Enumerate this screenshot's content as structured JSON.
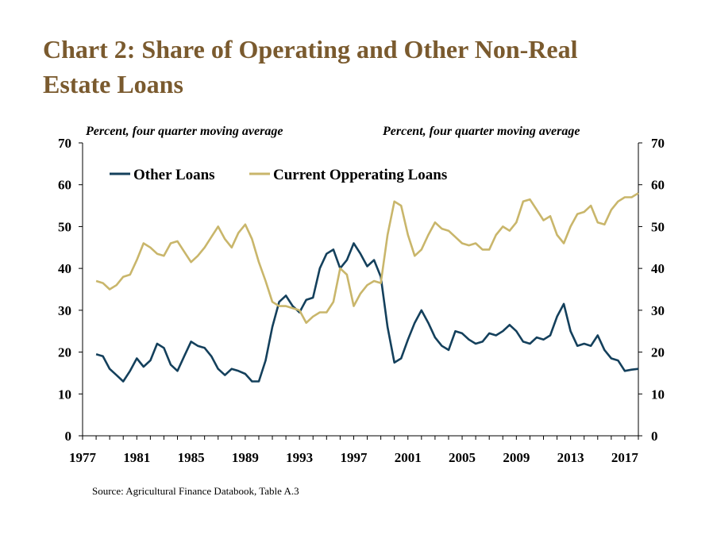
{
  "title_line1": "Chart 2: Share of Operating and Other Non-Real",
  "title_line2": "Estate Loans",
  "left_unit": "Percent, four quarter moving average",
  "right_unit": "Percent, four quarter moving average",
  "source": "Source: Agricultural Finance Databook, Table A.3",
  "colors": {
    "other": "#14405c",
    "operating": "#c9b66b"
  },
  "chart_data": {
    "type": "line",
    "title": "Chart 2: Share of Operating and Other Non-Real Estate Loans",
    "ylabel": "Percent, four quarter moving average",
    "y2label": "Percent, four quarter moving average",
    "xlim": [
      1977,
      2018
    ],
    "ylim": [
      0,
      70
    ],
    "yticks": [
      0,
      10,
      20,
      30,
      40,
      50,
      60,
      70
    ],
    "xticks": [
      1977,
      1981,
      1985,
      1989,
      1993,
      1997,
      2001,
      2005,
      2009,
      2013,
      2017
    ],
    "grid": false,
    "legend_position": "top-left",
    "series": [
      {
        "name": "Other Loans",
        "color": "#14405c",
        "x": [
          1978.0,
          1978.5,
          1979.0,
          1979.5,
          1980.0,
          1980.5,
          1981.0,
          1981.5,
          1982.0,
          1982.5,
          1983.0,
          1983.5,
          1984.0,
          1984.5,
          1985.0,
          1985.5,
          1986.0,
          1986.5,
          1987.0,
          1987.5,
          1988.0,
          1988.5,
          1989.0,
          1989.5,
          1990.0,
          1990.5,
          1991.0,
          1991.5,
          1992.0,
          1992.5,
          1993.0,
          1993.5,
          1994.0,
          1994.5,
          1995.0,
          1995.5,
          1996.0,
          1996.5,
          1997.0,
          1997.5,
          1998.0,
          1998.5,
          1999.0,
          1999.5,
          2000.0,
          2000.5,
          2001.0,
          2001.5,
          2002.0,
          2002.5,
          2003.0,
          2003.5,
          2004.0,
          2004.5,
          2005.0,
          2005.5,
          2006.0,
          2006.5,
          2007.0,
          2007.5,
          2008.0,
          2008.5,
          2009.0,
          2009.5,
          2010.0,
          2010.5,
          2011.0,
          2011.5,
          2012.0,
          2012.5,
          2013.0,
          2013.5,
          2014.0,
          2014.5,
          2015.0,
          2015.5,
          2016.0,
          2016.5,
          2017.0,
          2017.5,
          2018.0
        ],
        "values": [
          19.5,
          19.0,
          16.0,
          14.5,
          13.0,
          15.5,
          18.5,
          16.5,
          18.0,
          22.0,
          21.0,
          17.0,
          15.5,
          19.0,
          22.5,
          21.5,
          21.0,
          19.0,
          16.0,
          14.5,
          16.0,
          15.5,
          14.8,
          13.0,
          13.0,
          18.0,
          26.0,
          32.0,
          33.5,
          31.0,
          29.5,
          32.5,
          33.0,
          40.0,
          43.5,
          44.5,
          40.0,
          42.0,
          46.0,
          43.5,
          40.5,
          42.0,
          38.0,
          26.0,
          17.5,
          18.5,
          23.0,
          27.0,
          30.0,
          27.0,
          23.5,
          21.5,
          20.5,
          25.0,
          24.5,
          23.0,
          22.0,
          22.5,
          24.5,
          24.0,
          25.0,
          26.5,
          25.0,
          22.5,
          22.0,
          23.5,
          23.0,
          24.0,
          28.5,
          31.5,
          25.0,
          21.5,
          22.0,
          21.5,
          24.0,
          20.5,
          18.5,
          18.0,
          15.5,
          15.8,
          16.0
        ]
      },
      {
        "name": "Current Opperating Loans",
        "color": "#c9b66b",
        "x": [
          1978.0,
          1978.5,
          1979.0,
          1979.5,
          1980.0,
          1980.5,
          1981.0,
          1981.5,
          1982.0,
          1982.5,
          1983.0,
          1983.5,
          1984.0,
          1984.5,
          1985.0,
          1985.5,
          1986.0,
          1986.5,
          1987.0,
          1987.5,
          1988.0,
          1988.5,
          1989.0,
          1989.5,
          1990.0,
          1990.5,
          1991.0,
          1991.5,
          1992.0,
          1992.5,
          1993.0,
          1993.5,
          1994.0,
          1994.5,
          1995.0,
          1995.5,
          1996.0,
          1996.5,
          1997.0,
          1997.5,
          1998.0,
          1998.5,
          1999.0,
          1999.5,
          2000.0,
          2000.5,
          2001.0,
          2001.5,
          2002.0,
          2002.5,
          2003.0,
          2003.5,
          2004.0,
          2004.5,
          2005.0,
          2005.5,
          2006.0,
          2006.5,
          2007.0,
          2007.5,
          2008.0,
          2008.5,
          2009.0,
          2009.5,
          2010.0,
          2010.5,
          2011.0,
          2011.5,
          2012.0,
          2012.5,
          2013.0,
          2013.5,
          2014.0,
          2014.5,
          2015.0,
          2015.5,
          2016.0,
          2016.5,
          2017.0,
          2017.5,
          2018.0
        ],
        "values": [
          37.0,
          36.5,
          35.0,
          36.0,
          38.0,
          38.5,
          42.0,
          46.0,
          45.0,
          43.5,
          43.0,
          46.0,
          46.5,
          44.0,
          41.5,
          43.0,
          45.0,
          47.5,
          50.0,
          47.0,
          45.0,
          48.5,
          50.5,
          47.0,
          41.5,
          37.0,
          32.0,
          31.0,
          31.0,
          30.5,
          30.0,
          27.0,
          28.5,
          29.5,
          29.5,
          32.0,
          40.0,
          38.5,
          31.0,
          34.0,
          36.0,
          37.0,
          36.5,
          48.0,
          56.0,
          55.0,
          48.0,
          43.0,
          44.5,
          48.0,
          51.0,
          49.5,
          49.0,
          47.5,
          46.0,
          45.5,
          46.0,
          44.5,
          44.5,
          48.0,
          50.0,
          49.0,
          51.0,
          56.0,
          56.5,
          54.0,
          51.5,
          52.5,
          48.0,
          46.0,
          50.0,
          53.0,
          53.5,
          55.0,
          51.0,
          50.5,
          54.0,
          56.0,
          57.0,
          57.0,
          58.0
        ]
      }
    ]
  }
}
